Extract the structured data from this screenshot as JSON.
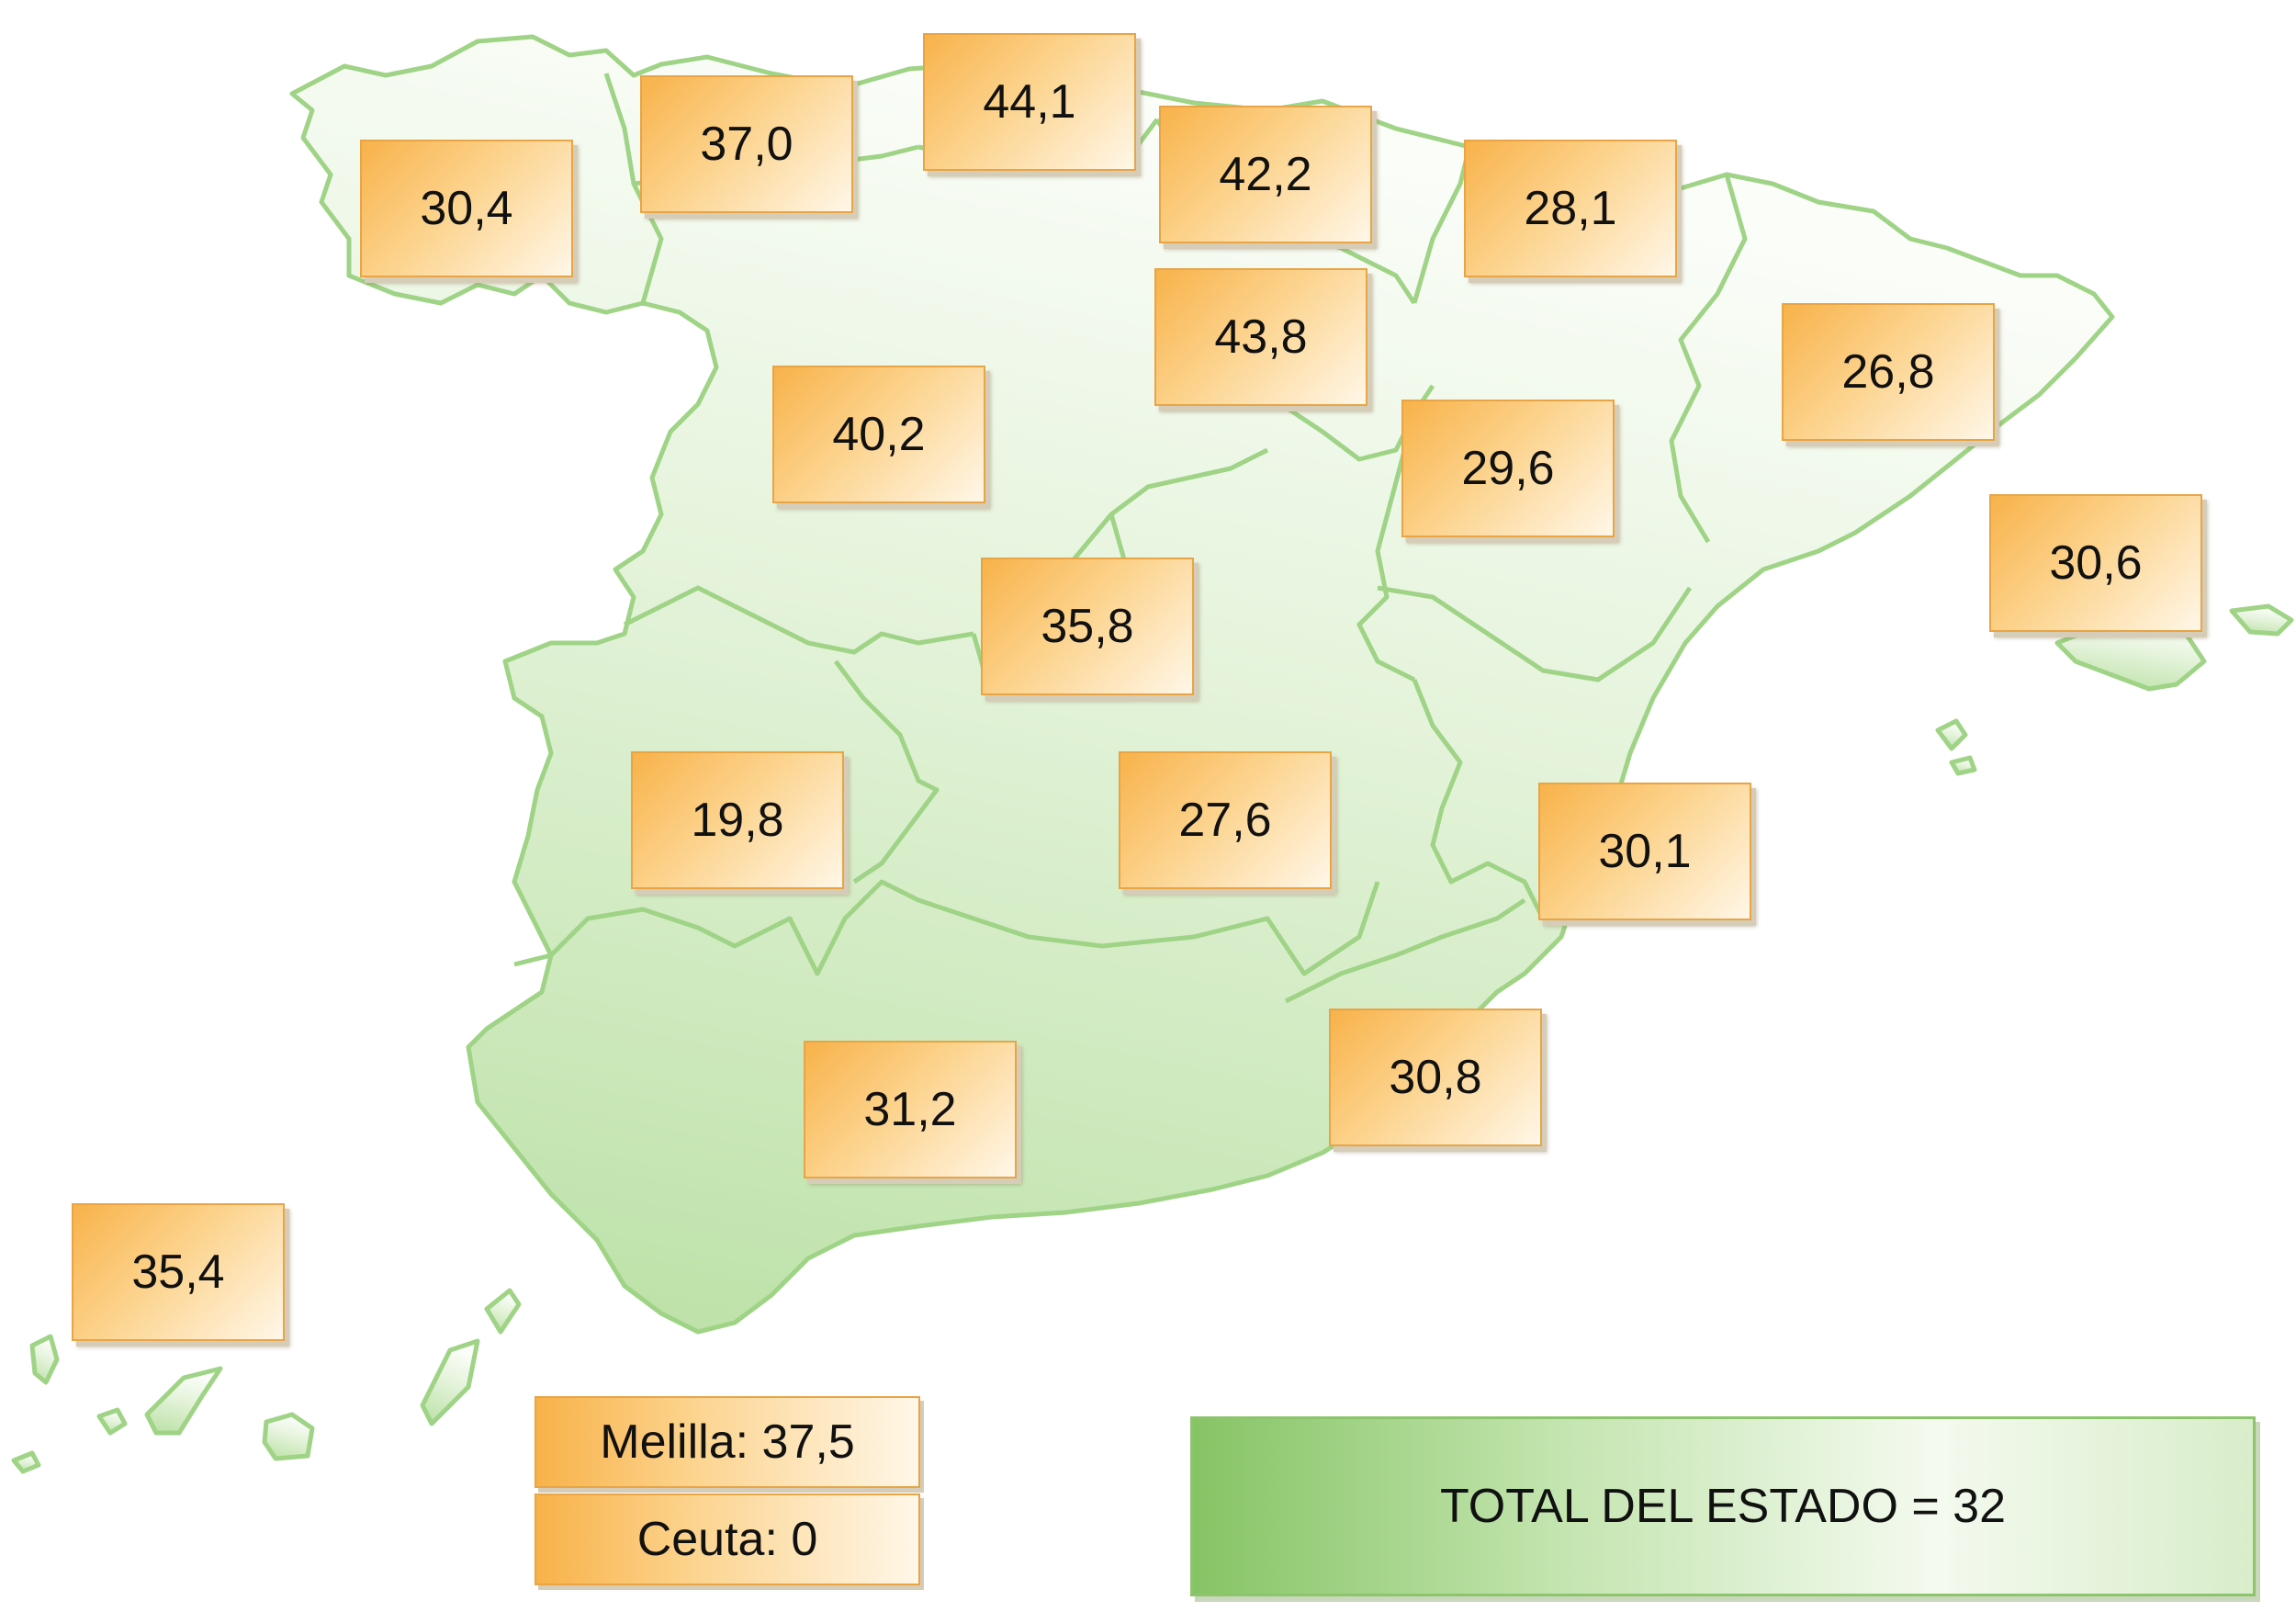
{
  "regions": [
    {
      "id": "galicia",
      "value": "30,4"
    },
    {
      "id": "asturias",
      "value": "37,0"
    },
    {
      "id": "cantabria",
      "value": "44,1"
    },
    {
      "id": "pais-vasco",
      "value": "42,2"
    },
    {
      "id": "navarra",
      "value": "28,1"
    },
    {
      "id": "la-rioja",
      "value": "43,8"
    },
    {
      "id": "cataluna",
      "value": "26,8"
    },
    {
      "id": "castilla-y-leon",
      "value": "40,2"
    },
    {
      "id": "aragon",
      "value": "29,6"
    },
    {
      "id": "baleares",
      "value": "30,6"
    },
    {
      "id": "madrid",
      "value": "35,8"
    },
    {
      "id": "extremadura",
      "value": "19,8"
    },
    {
      "id": "castilla-la-mancha",
      "value": "27,6"
    },
    {
      "id": "valencia",
      "value": "30,1"
    },
    {
      "id": "murcia",
      "value": "30,8"
    },
    {
      "id": "andalucia",
      "value": "31,2"
    },
    {
      "id": "canarias",
      "value": "35,4"
    }
  ],
  "cities": {
    "melilla": "Melilla: 37,5",
    "ceuta": "Ceuta: 0"
  },
  "total": "TOTAL DEL ESTADO = 32",
  "colors": {
    "region_fill": "#cfe9bf",
    "region_stroke": "#9fd386",
    "label_fill": "#fcd38d",
    "label_border": "#e8a445",
    "total_fill": "#a8d68b"
  }
}
